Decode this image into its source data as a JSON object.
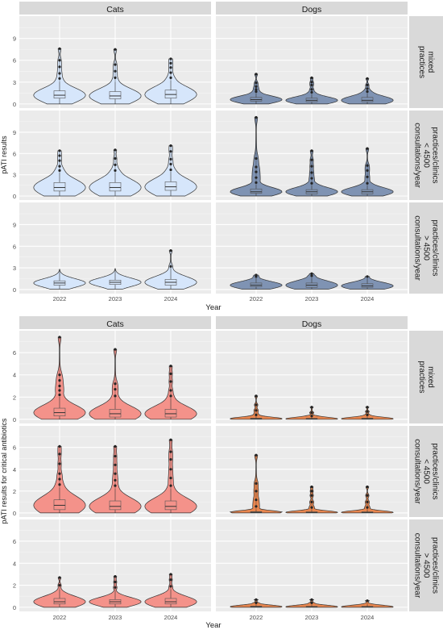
{
  "chart_data": [
    {
      "type": "violin",
      "xlabel": "Year",
      "ylabel": "pATI results",
      "categories": [
        "2022",
        "2023",
        "2024"
      ],
      "column_facets": [
        "Cats",
        "Dogs"
      ],
      "row_facets": [
        "mixed practices",
        "practices/clinics < 4500 consultations/year",
        "practices/clinics > 4500 consultations/year"
      ],
      "y_ticks": [
        0,
        3,
        6,
        9
      ],
      "ylim": [
        0,
        11.5
      ],
      "series_colors": {
        "Cats": "#d6e6fb",
        "Dogs": "#7f93b3"
      },
      "panels": [
        {
          "column": "Cats",
          "row": "mixed practices",
          "groups": [
            {
              "x": "2022",
              "median": 1.2,
              "q1": 0.8,
              "q3": 1.8,
              "wmin": 0,
              "wmax": 3.0,
              "max": 7.6,
              "outliers": [
                3.5,
                4.2,
                5.1,
                6.0,
                7.6
              ]
            },
            {
              "x": "2023",
              "median": 1.1,
              "q1": 0.7,
              "q3": 1.7,
              "wmin": 0,
              "wmax": 3.0,
              "max": 7.5,
              "outliers": [
                3.6,
                4.5,
                5.4,
                7.5
              ]
            },
            {
              "x": "2024",
              "median": 1.3,
              "q1": 0.8,
              "q3": 1.9,
              "wmin": 0,
              "wmax": 3.2,
              "max": 6.2,
              "outliers": [
                3.6,
                4.3,
                5.0,
                5.6,
                6.2
              ]
            }
          ]
        },
        {
          "column": "Dogs",
          "row": "mixed practices",
          "groups": [
            {
              "x": "2022",
              "median": 0.6,
              "q1": 0.4,
              "q3": 0.9,
              "wmin": 0,
              "wmax": 1.5,
              "max": 4.1,
              "outliers": [
                1.7,
                2.0,
                2.4,
                2.9,
                4.1
              ]
            },
            {
              "x": "2023",
              "median": 0.5,
              "q1": 0.3,
              "q3": 0.8,
              "wmin": 0,
              "wmax": 1.4,
              "max": 3.6,
              "outliers": [
                1.6,
                2.0,
                2.6,
                3.0,
                3.6
              ]
            },
            {
              "x": "2024",
              "median": 0.5,
              "q1": 0.3,
              "q3": 0.9,
              "wmin": 0,
              "wmax": 1.5,
              "max": 3.5,
              "outliers": [
                1.7,
                2.1,
                2.6,
                3.5
              ]
            }
          ]
        },
        {
          "column": "Cats",
          "row": "practices/clinics < 4500 consultations/year",
          "groups": [
            {
              "x": "2022",
              "median": 1.2,
              "q1": 0.7,
              "q3": 1.9,
              "wmin": 0,
              "wmax": 3.3,
              "max": 6.4,
              "outliers": [
                3.6,
                4.2,
                5.0,
                5.7,
                6.4
              ]
            },
            {
              "x": "2023",
              "median": 1.2,
              "q1": 0.7,
              "q3": 1.9,
              "wmin": 0,
              "wmax": 3.3,
              "max": 6.5,
              "outliers": [
                3.6,
                4.4,
                5.3,
                6.5
              ]
            },
            {
              "x": "2024",
              "median": 1.3,
              "q1": 0.8,
              "q3": 2.0,
              "wmin": 0,
              "wmax": 3.4,
              "max": 7.1,
              "outliers": [
                3.7,
                4.5,
                5.2,
                6.3,
                7.1
              ]
            }
          ]
        },
        {
          "column": "Dogs",
          "row": "practices/clinics < 4500 consultations/year",
          "groups": [
            {
              "x": "2022",
              "median": 0.6,
              "q1": 0.4,
              "q3": 1.0,
              "wmin": 0,
              "wmax": 1.6,
              "max": 11.1,
              "outliers": [
                1.9,
                2.6,
                3.4,
                4.1,
                5.3,
                11.1
              ]
            },
            {
              "x": "2023",
              "median": 0.6,
              "q1": 0.3,
              "q3": 0.9,
              "wmin": 0,
              "wmax": 1.5,
              "max": 6.4,
              "outliers": [
                1.8,
                2.5,
                3.3,
                4.2,
                5.1,
                6.4
              ]
            },
            {
              "x": "2024",
              "median": 0.6,
              "q1": 0.3,
              "q3": 0.9,
              "wmin": 0,
              "wmax": 1.5,
              "max": 6.7,
              "outliers": [
                1.8,
                2.7,
                3.6,
                4.3,
                6.7
              ]
            }
          ]
        },
        {
          "column": "Cats",
          "row": "practices/clinics > 4500 consultations/year",
          "groups": [
            {
              "x": "2022",
              "median": 0.9,
              "q1": 0.6,
              "q3": 1.2,
              "wmin": 0.1,
              "wmax": 2.7,
              "max": 2.8,
              "outliers": []
            },
            {
              "x": "2023",
              "median": 1.0,
              "q1": 0.7,
              "q3": 1.3,
              "wmin": 0.1,
              "wmax": 2.8,
              "max": 2.9,
              "outliers": []
            },
            {
              "x": "2024",
              "median": 1.0,
              "q1": 0.6,
              "q3": 1.4,
              "wmin": 0.1,
              "wmax": 3.0,
              "max": 5.4,
              "outliers": [
                3.2,
                5.4
              ]
            }
          ]
        },
        {
          "column": "Dogs",
          "row": "practices/clinics > 4500 consultations/year",
          "groups": [
            {
              "x": "2022",
              "median": 0.6,
              "q1": 0.4,
              "q3": 0.9,
              "wmin": 0.1,
              "wmax": 1.6,
              "max": 2.0,
              "outliers": [
                1.8,
                2.0
              ]
            },
            {
              "x": "2023",
              "median": 0.6,
              "q1": 0.3,
              "q3": 0.9,
              "wmin": 0.1,
              "wmax": 1.6,
              "max": 2.2,
              "outliers": [
                1.9,
                2.2
              ]
            },
            {
              "x": "2024",
              "median": 0.5,
              "q1": 0.3,
              "q3": 0.8,
              "wmin": 0.1,
              "wmax": 1.5,
              "max": 1.8,
              "outliers": [
                1.8
              ]
            }
          ]
        }
      ]
    },
    {
      "type": "violin",
      "xlabel": "Year",
      "ylabel": "pATI results for critical antibiotics",
      "categories": [
        "2022",
        "2023",
        "2024"
      ],
      "column_facets": [
        "Cats",
        "Dogs"
      ],
      "row_facets": [
        "mixed practices",
        "practices/clinics < 4500 consultations/year",
        "practices/clinics > 4500 consultations/year"
      ],
      "y_ticks": [
        0,
        2,
        4,
        6
      ],
      "ylim": [
        0,
        7.6
      ],
      "series_colors": {
        "Cats": "#f4928a",
        "Dogs": "#e8864f"
      },
      "panels": [
        {
          "column": "Cats",
          "row": "mixed practices",
          "groups": [
            {
              "x": "2022",
              "median": 0.6,
              "q1": 0.3,
              "q3": 1.0,
              "wmin": 0,
              "wmax": 2.0,
              "max": 7.4,
              "outliers": [
                2.2,
                2.6,
                3.0,
                3.5,
                4.0,
                7.4
              ]
            },
            {
              "x": "2023",
              "median": 0.5,
              "q1": 0.2,
              "q3": 0.9,
              "wmin": 0,
              "wmax": 1.9,
              "max": 6.3,
              "outliers": [
                2.1,
                2.7,
                3.2,
                6.3
              ]
            },
            {
              "x": "2024",
              "median": 0.5,
              "q1": 0.2,
              "q3": 0.9,
              "wmin": 0,
              "wmax": 1.9,
              "max": 4.8,
              "outliers": [
                2.1,
                2.6,
                3.4,
                4.1,
                4.8
              ]
            }
          ]
        },
        {
          "column": "Dogs",
          "row": "mixed practices",
          "groups": [
            {
              "x": "2022",
              "median": 0.05,
              "q1": 0.02,
              "q3": 0.1,
              "wmin": 0,
              "wmax": 0.2,
              "max": 2.1,
              "outliers": [
                0.4,
                0.8,
                1.3,
                2.1
              ]
            },
            {
              "x": "2023",
              "median": 0.04,
              "q1": 0.02,
              "q3": 0.08,
              "wmin": 0,
              "wmax": 0.2,
              "max": 1.1,
              "outliers": [
                0.3,
                0.6,
                1.1
              ]
            },
            {
              "x": "2024",
              "median": 0.05,
              "q1": 0.02,
              "q3": 0.1,
              "wmin": 0,
              "wmax": 0.2,
              "max": 1.1,
              "outliers": [
                0.4,
                0.7,
                1.1
              ]
            }
          ]
        },
        {
          "column": "Cats",
          "row": "practices/clinics < 4500 consultations/year",
          "groups": [
            {
              "x": "2022",
              "median": 0.7,
              "q1": 0.3,
              "q3": 1.2,
              "wmin": 0,
              "wmax": 2.3,
              "max": 6.1,
              "outliers": [
                2.6,
                3.1,
                3.6,
                4.5,
                5.4,
                6.1
              ]
            },
            {
              "x": "2023",
              "median": 0.6,
              "q1": 0.3,
              "q3": 1.1,
              "wmin": 0,
              "wmax": 2.2,
              "max": 6.1,
              "outliers": [
                2.5,
                3.0,
                3.6,
                4.4,
                5.2,
                6.1
              ]
            },
            {
              "x": "2024",
              "median": 0.6,
              "q1": 0.3,
              "q3": 1.1,
              "wmin": 0,
              "wmax": 2.2,
              "max": 6.7,
              "outliers": [
                2.5,
                3.2,
                4.0,
                4.9,
                5.6,
                6.7
              ]
            }
          ]
        },
        {
          "column": "Dogs",
          "row": "practices/clinics < 4500 consultations/year",
          "groups": [
            {
              "x": "2022",
              "median": 0.06,
              "q1": 0.02,
              "q3": 0.12,
              "wmin": 0,
              "wmax": 0.3,
              "max": 5.3,
              "outliers": [
                0.6,
                1.2,
                2.0,
                2.7,
                5.3
              ]
            },
            {
              "x": "2023",
              "median": 0.05,
              "q1": 0.02,
              "q3": 0.1,
              "wmin": 0,
              "wmax": 0.25,
              "max": 2.4,
              "outliers": [
                0.5,
                1.0,
                1.6,
                2.0,
                2.4
              ]
            },
            {
              "x": "2024",
              "median": 0.05,
              "q1": 0.02,
              "q3": 0.1,
              "wmin": 0,
              "wmax": 0.25,
              "max": 2.4,
              "outliers": [
                0.5,
                1.0,
                1.6,
                2.4
              ]
            }
          ]
        },
        {
          "column": "Cats",
          "row": "practices/clinics > 4500 consultations/year",
          "groups": [
            {
              "x": "2022",
              "median": 0.5,
              "q1": 0.3,
              "q3": 0.8,
              "wmin": 0.05,
              "wmax": 1.6,
              "max": 2.7,
              "outliers": [
                2.0,
                2.7
              ]
            },
            {
              "x": "2023",
              "median": 0.5,
              "q1": 0.3,
              "q3": 0.7,
              "wmin": 0.05,
              "wmax": 1.5,
              "max": 2.8,
              "outliers": [
                1.8,
                2.3,
                2.8
              ]
            },
            {
              "x": "2024",
              "median": 0.5,
              "q1": 0.3,
              "q3": 0.8,
              "wmin": 0.05,
              "wmax": 1.6,
              "max": 3.0,
              "outliers": [
                1.9,
                2.5,
                3.0
              ]
            }
          ]
        },
        {
          "column": "Dogs",
          "row": "practices/clinics > 4500 consultations/year",
          "groups": [
            {
              "x": "2022",
              "median": 0.05,
              "q1": 0.02,
              "q3": 0.1,
              "wmin": 0,
              "wmax": 0.2,
              "max": 0.7,
              "outliers": [
                0.4,
                0.7
              ]
            },
            {
              "x": "2023",
              "median": 0.04,
              "q1": 0.02,
              "q3": 0.08,
              "wmin": 0,
              "wmax": 0.2,
              "max": 0.7,
              "outliers": [
                0.4,
                0.7
              ]
            },
            {
              "x": "2024",
              "median": 0.04,
              "q1": 0.02,
              "q3": 0.08,
              "wmin": 0,
              "wmax": 0.2,
              "max": 0.6,
              "outliers": [
                0.6
              ]
            }
          ]
        }
      ]
    }
  ]
}
